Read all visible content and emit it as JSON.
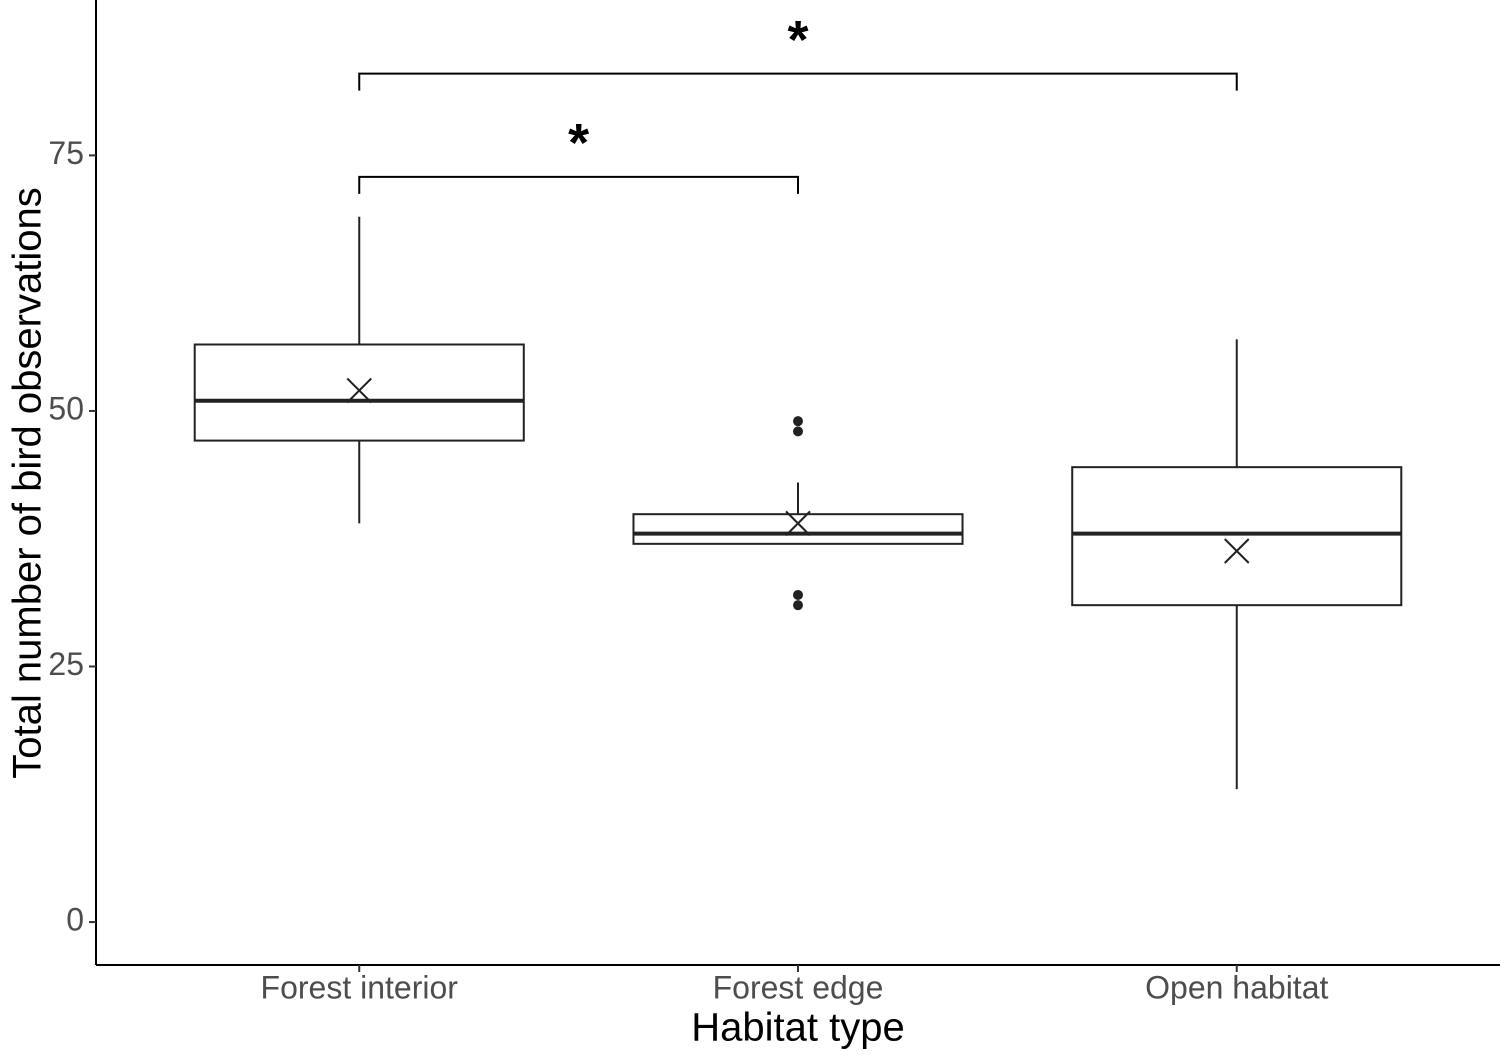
{
  "chart_data": {
    "type": "box",
    "x_label": "Habitat type",
    "y_label": "Total number of bird observations",
    "categories": [
      "Forest interior",
      "Forest edge",
      "Open habitat"
    ],
    "boxes": [
      {
        "whisker_low": 39,
        "q1": 47.1,
        "median": 51,
        "q3": 56.5,
        "whisker_high": 69,
        "mean": 52,
        "outliers": []
      },
      {
        "whisker_low": 37,
        "q1": 37,
        "median": 38,
        "q3": 39.9,
        "whisker_high": 43,
        "mean": 39,
        "outliers": [
          49,
          48,
          32,
          31
        ]
      },
      {
        "whisker_low": 13,
        "q1": 31,
        "median": 38,
        "q3": 44.5,
        "whisker_high": 57,
        "mean": 36.3,
        "outliers": []
      }
    ],
    "annotations": [
      {
        "label": "*",
        "between": [
          0,
          1
        ],
        "y": 72.9
      },
      {
        "label": "*",
        "between": [
          0,
          2
        ],
        "y": 83
      }
    ],
    "color": "#222222",
    "ylim": [
      -4.2,
      90.2
    ],
    "yticks": [
      0,
      25,
      50,
      75
    ],
    "grid": false
  }
}
